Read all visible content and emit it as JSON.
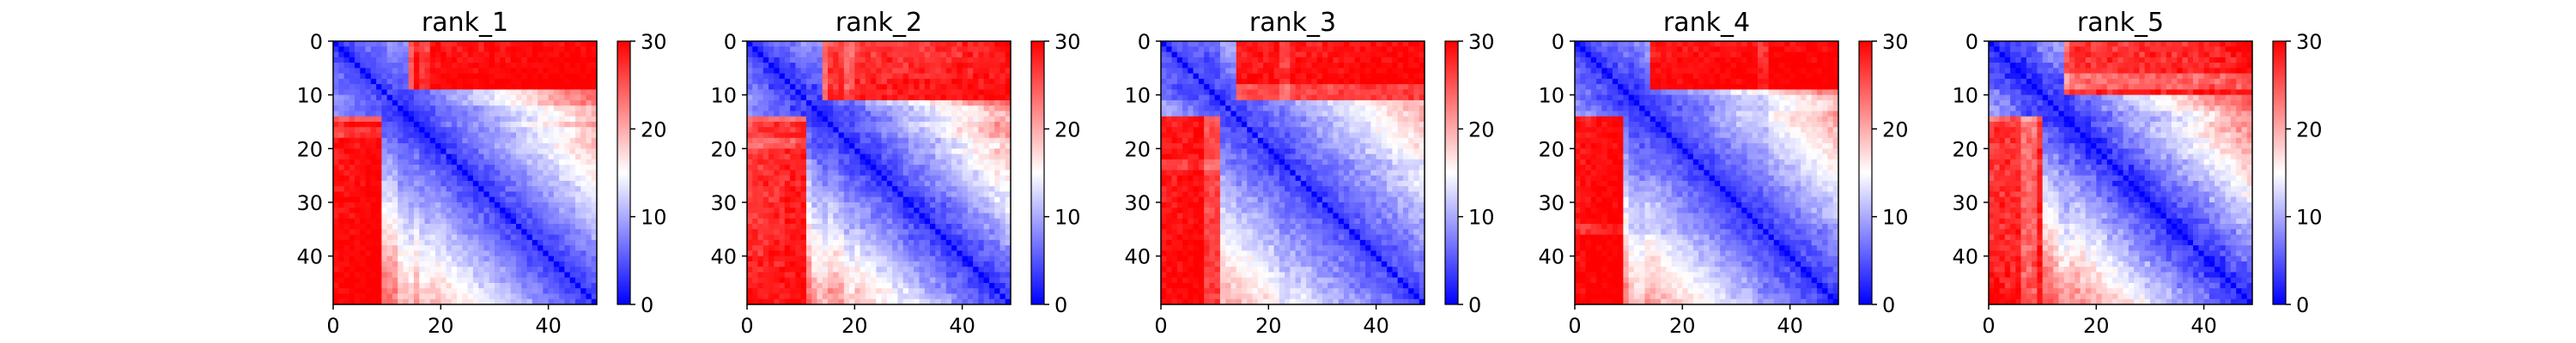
{
  "chart_data": {
    "type": "heatmap",
    "panels": [
      {
        "title": "rank_1",
        "pattern": "R1: strong red block top-right rows 0-8; blue band along diagonal; red bottom-left corner",
        "xlim": [
          0,
          49
        ],
        "ylim": [
          49,
          0
        ],
        "xticks": [
          "0",
          "20",
          "40"
        ],
        "yticks": [
          "0",
          "10",
          "20",
          "30",
          "40"
        ],
        "colorbar": {
          "min": 0,
          "max": 30,
          "ticks": [
            "0",
            "10",
            "20",
            "30"
          ]
        }
      },
      {
        "title": "rank_2",
        "pattern": "R2: red top-right triangle; diagonal blue band; red bottom-left",
        "xlim": [
          0,
          49
        ],
        "ylim": [
          49,
          0
        ],
        "xticks": [
          "0",
          "20",
          "40"
        ],
        "yticks": [
          "0",
          "10",
          "20",
          "30",
          "40"
        ],
        "colorbar": {
          "min": 0,
          "max": 30,
          "ticks": [
            "0",
            "10",
            "20",
            "30"
          ]
        }
      },
      {
        "title": "rank_3",
        "pattern": "R3: red block top-right rows 0-10; wide blue lower region; red strip at bottom rows",
        "xlim": [
          0,
          49
        ],
        "ylim": [
          49,
          0
        ],
        "xticks": [
          "0",
          "20",
          "40"
        ],
        "yticks": [
          "0",
          "10",
          "20",
          "30",
          "40"
        ],
        "colorbar": {
          "min": 0,
          "max": 30,
          "ticks": [
            "0",
            "10",
            "20",
            "30"
          ]
        }
      },
      {
        "title": "rank_4",
        "pattern": "R4: red block top-right rows 0-8; blue diagonal band; red bottom-left corner",
        "xlim": [
          0,
          49
        ],
        "ylim": [
          49,
          0
        ],
        "xticks": [
          "0",
          "20",
          "40"
        ],
        "yticks": [
          "0",
          "10",
          "20",
          "30",
          "40"
        ],
        "colorbar": {
          "min": 0,
          "max": 30,
          "ticks": [
            "0",
            "10",
            "20",
            "30"
          ]
        }
      },
      {
        "title": "rank_5",
        "pattern": "R5: red top-right; thin blue diagonal; red left and bottom",
        "xlim": [
          0,
          49
        ],
        "ylim": [
          49,
          0
        ],
        "xticks": [
          "0",
          "20",
          "40"
        ],
        "yticks": [
          "0",
          "10",
          "20",
          "30",
          "40"
        ],
        "colorbar": {
          "min": 0,
          "max": 30,
          "ticks": [
            "0",
            "10",
            "20",
            "30"
          ]
        }
      }
    ],
    "colormap": "bwr",
    "colors": {
      "low": "#0000ff",
      "mid": "#ffffff",
      "high": "#ff0000"
    },
    "grid_size": 49
  }
}
